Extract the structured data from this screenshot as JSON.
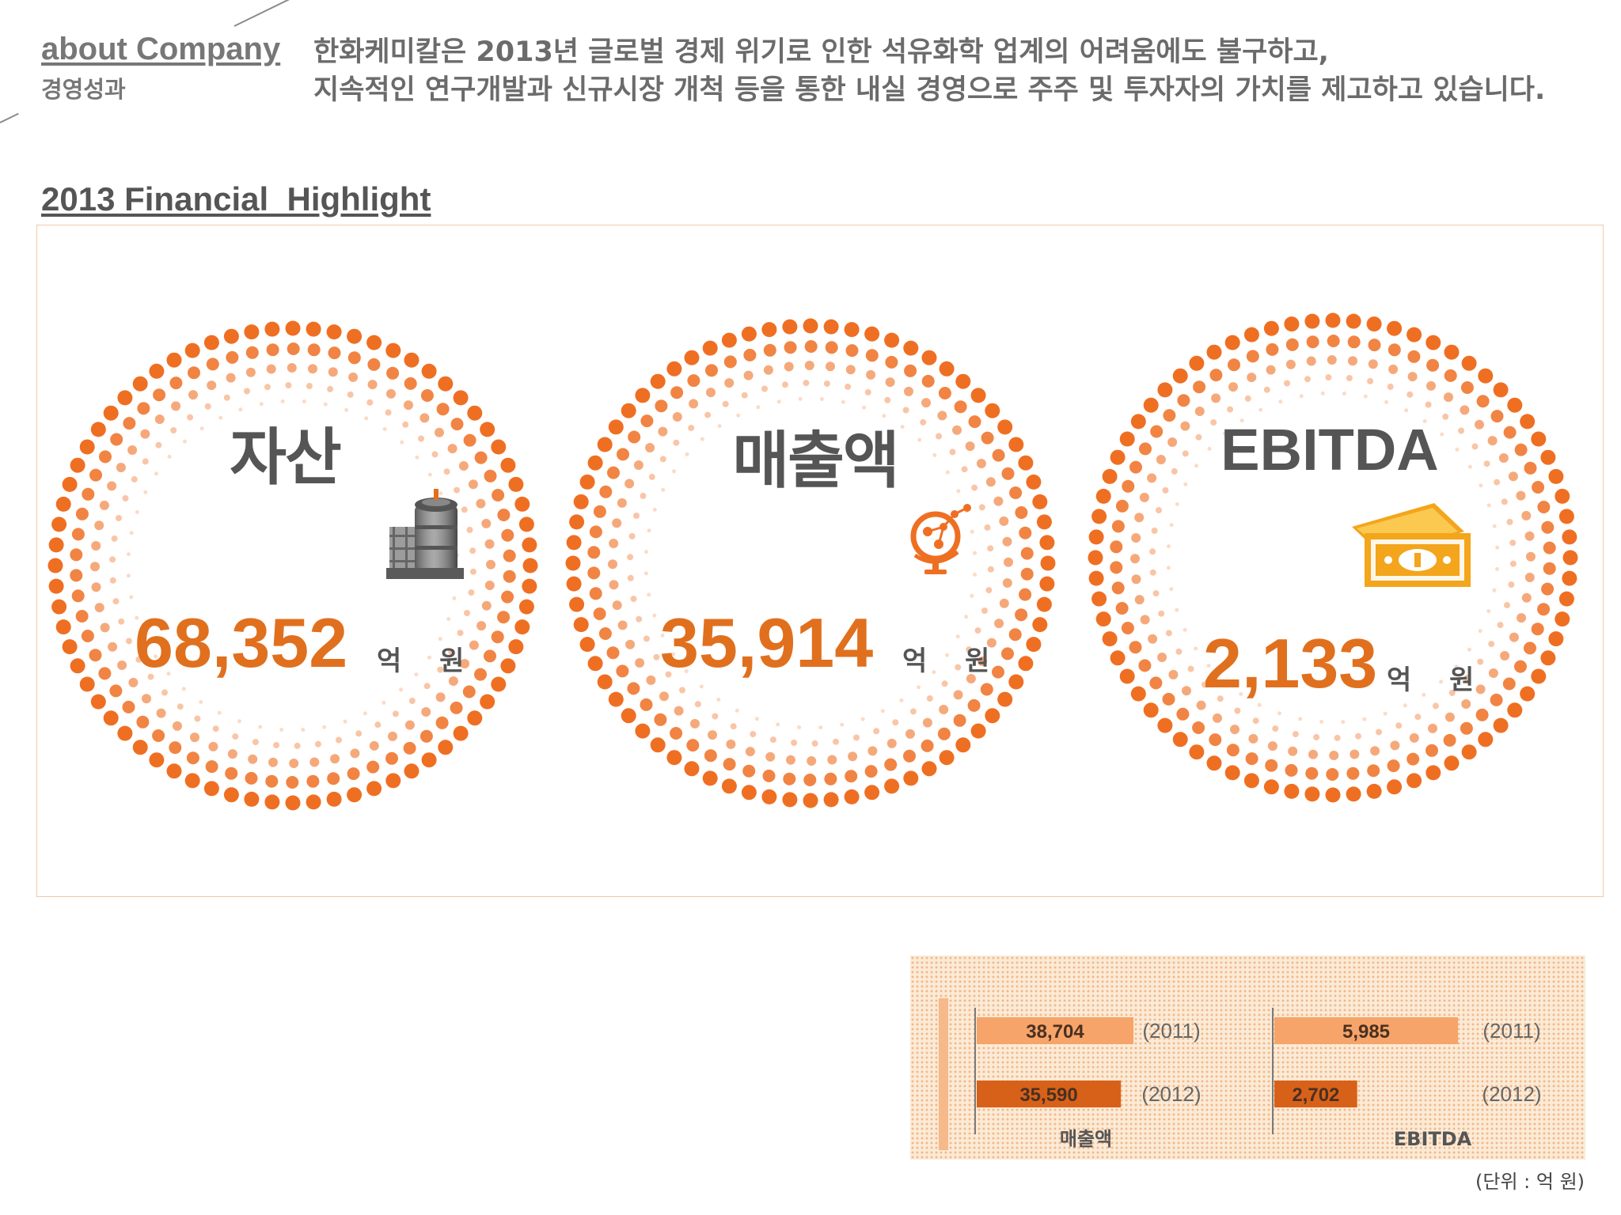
{
  "header": {
    "title": "about Company",
    "subtitle": "경영성과",
    "intro_line1": "한화케미칼은 2013년 글로벌 경제 위기로 인한 석유화학 업계의 어려움에도 불구하고,",
    "intro_line2": "지속적인 연구개발과 신규시장 개척 등을 통한 내실 경영으로 주주 및 투자자의 가치를 제고하고 있습니다."
  },
  "section": {
    "title": "2013 Financial  Highlight"
  },
  "metrics": [
    {
      "label": "자산",
      "value": "68,352",
      "unit": "억 원",
      "icon": "factory-icon"
    },
    {
      "label": "매출액",
      "value": "35,914",
      "unit": "억 원",
      "icon": "globe-network-icon"
    },
    {
      "label": "EBITDA",
      "value": "2,133",
      "unit": "억 원",
      "icon": "money-icon"
    }
  ],
  "colors": {
    "accent": "#e0701e",
    "dot": "#ef6f22",
    "bar_light": "#f6a469",
    "bar_dark": "#d8611a",
    "panel_border": "#f0c9a8"
  },
  "chart_data": [
    {
      "type": "bar",
      "orientation": "horizontal",
      "xlabel": "매출액",
      "categories": [
        "(2011)",
        "(2012)"
      ],
      "values": [
        38704,
        35590
      ],
      "value_labels": [
        "38,704",
        "35,590"
      ]
    },
    {
      "type": "bar",
      "orientation": "horizontal",
      "xlabel": "EBITDA",
      "categories": [
        "(2011)",
        "(2012)"
      ],
      "values": [
        5985,
        2702
      ],
      "value_labels": [
        "5,985",
        "2,702"
      ]
    }
  ],
  "unit_note": "(단위 : 억 원)"
}
